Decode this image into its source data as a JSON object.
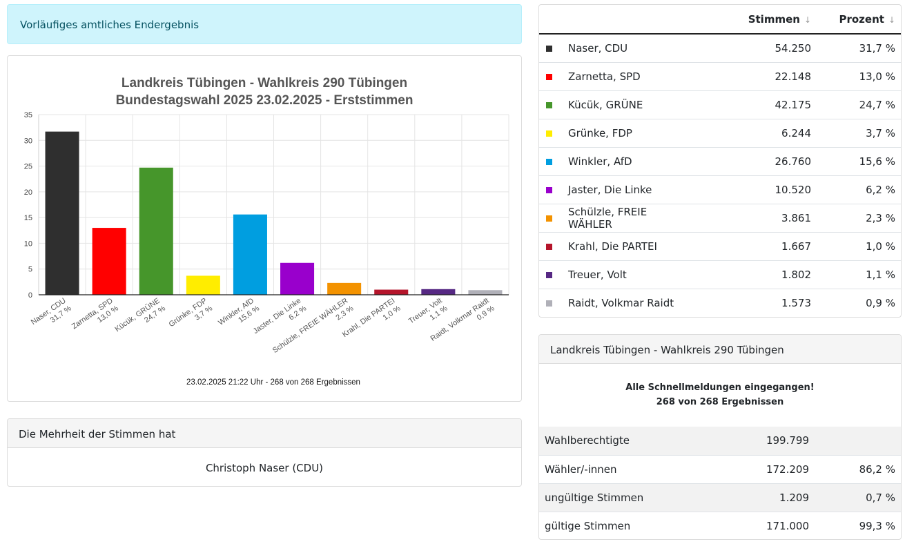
{
  "alert": {
    "text": "Vorläufiges amtliches Endergebnis"
  },
  "chart_data": {
    "type": "bar",
    "title": [
      "Landkreis Tübingen - Wahlkreis 290 Tübingen",
      "Bundestagswahl 2025 23.02.2025  - Erststimmen"
    ],
    "footer": "23.02.2025 21:22 Uhr - 268 von 268 Ergebnissen",
    "ylim": [
      0,
      35
    ],
    "yticks": [
      0,
      5,
      10,
      15,
      20,
      25,
      30,
      35
    ],
    "grid": true,
    "categories": [
      "Naser, CDU",
      "Zarnetta, SPD",
      "Kücük, GRÜNE",
      "Grünke, FDP",
      "Winkler, AfD",
      "Jaster, Die Linke",
      "Schülzle, FREIE WÄHLER",
      "Krahl, Die PARTEI",
      "Treuer, Volt",
      "Raidt, Volkmar Raidt"
    ],
    "values": [
      31.7,
      13.0,
      24.7,
      3.7,
      15.6,
      6.2,
      2.3,
      1.0,
      1.1,
      0.9
    ],
    "value_labels": [
      "31,7 %",
      "13,0 %",
      "24,7 %",
      "3,7 %",
      "15,6 %",
      "6,2 %",
      "2,3 %",
      "1,0 %",
      "1,1 %",
      "0,9 %"
    ],
    "colors": [
      "#2f2f2f",
      "#ff0000",
      "#46962b",
      "#ffed00",
      "#009ee0",
      "#9900cc",
      "#f39200",
      "#b5152b",
      "#562883",
      "#b0b0b8"
    ]
  },
  "results": {
    "headers": {
      "name": "",
      "votes": "Stimmen",
      "percent": "Prozent",
      "sort_icon": "↓"
    },
    "rows": [
      {
        "name": "Naser, CDU",
        "votes": "54.250",
        "percent": "31,7 %",
        "color": "#2f2f2f"
      },
      {
        "name": "Zarnetta, SPD",
        "votes": "22.148",
        "percent": "13,0 %",
        "color": "#ff0000"
      },
      {
        "name": "Kücük, GRÜNE",
        "votes": "42.175",
        "percent": "24,7 %",
        "color": "#46962b"
      },
      {
        "name": "Grünke, FDP",
        "votes": "6.244",
        "percent": "3,7 %",
        "color": "#ffed00"
      },
      {
        "name": "Winkler, AfD",
        "votes": "26.760",
        "percent": "15,6 %",
        "color": "#009ee0"
      },
      {
        "name": "Jaster, Die Linke",
        "votes": "10.520",
        "percent": "6,2 %",
        "color": "#9900cc"
      },
      {
        "name": "Schülzle, FREIE WÄHLER",
        "votes": "3.861",
        "percent": "2,3 %",
        "color": "#f39200"
      },
      {
        "name": "Krahl, Die PARTEI",
        "votes": "1.667",
        "percent": "1,0 %",
        "color": "#b5152b"
      },
      {
        "name": "Treuer, Volt",
        "votes": "1.802",
        "percent": "1,1 %",
        "color": "#562883"
      },
      {
        "name": "Raidt, Volkmar Raidt",
        "votes": "1.573",
        "percent": "0,9 %",
        "color": "#b0b0b8"
      }
    ]
  },
  "majority": {
    "header": "Die Mehrheit der Stimmen hat",
    "winner": "Christoph Naser (CDU)"
  },
  "summary": {
    "header": "Landkreis Tübingen - Wahlkreis 290 Tübingen",
    "notice_line1": "Alle Schnellmeldungen eingegangen!",
    "notice_line2": "268 von 268 Ergebnissen",
    "rows": [
      {
        "label": "Wahlberechtigte",
        "value": "199.799",
        "percent": ""
      },
      {
        "label": "Wähler/-innen",
        "value": "172.209",
        "percent": "86,2 %"
      },
      {
        "label": "ungültige Stimmen",
        "value": "1.209",
        "percent": "0,7 %"
      },
      {
        "label": "gültige Stimmen",
        "value": "171.000",
        "percent": "99,3 %"
      }
    ]
  }
}
